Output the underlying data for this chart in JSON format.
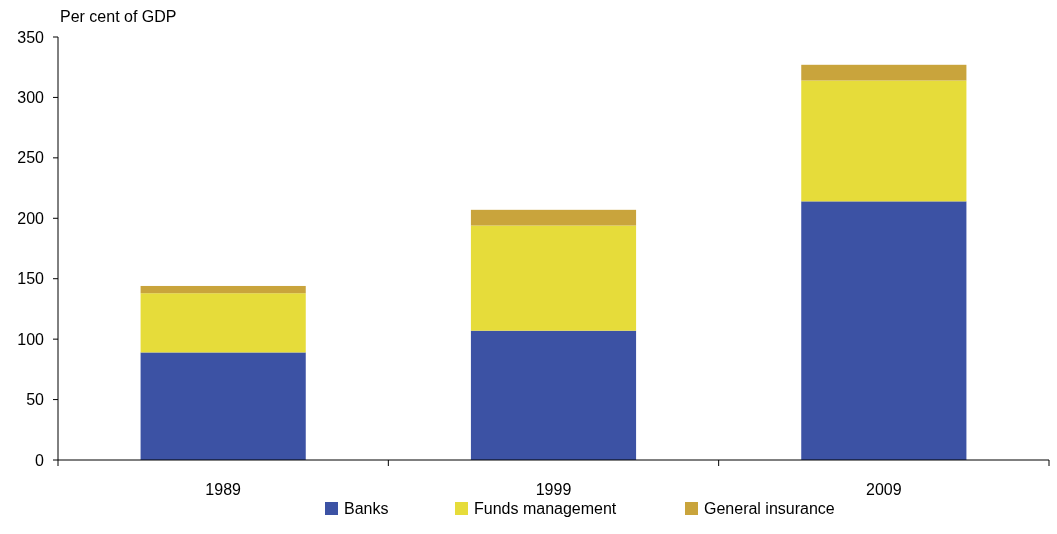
{
  "chart_data": {
    "type": "bar",
    "ylabel": "Per cent of GDP",
    "categories": [
      "1989",
      "1999",
      "2009"
    ],
    "stacked": true,
    "series": [
      {
        "name": "Banks",
        "color": "#3c52a4",
        "values": [
          89,
          107,
          214
        ]
      },
      {
        "name": "Funds management",
        "color": "#e6dc3a",
        "values": [
          49,
          87,
          100
        ]
      },
      {
        "name": "General insurance",
        "color": "#c9a43c",
        "values": [
          6,
          13,
          13
        ]
      }
    ],
    "ylim": [
      0,
      350
    ],
    "yticks": [
      0,
      50,
      100,
      150,
      200,
      250,
      300,
      350
    ],
    "legend": "bottom"
  }
}
